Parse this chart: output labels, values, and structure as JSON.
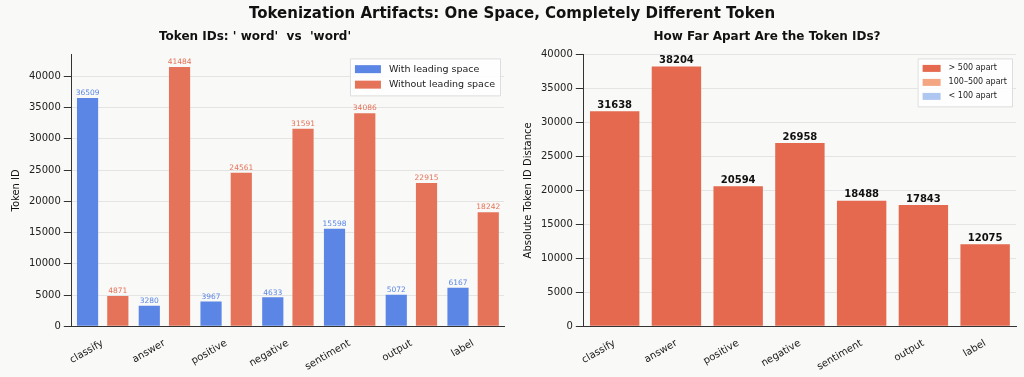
{
  "chart_data": [
    {
      "type": "bar",
      "title": "Token IDs: ' word'  vs  'word'",
      "ylabel": "Token ID",
      "categories": [
        "classify",
        "answer",
        "positive",
        "negative",
        "sentiment",
        "output",
        "label"
      ],
      "series": [
        {
          "name": "With leading space",
          "color": "#5b86e5",
          "values": [
            36509,
            3280,
            3967,
            4633,
            15598,
            5072,
            6167
          ]
        },
        {
          "name": "Without leading space",
          "color": "#e5735a",
          "values": [
            4871,
            41484,
            24561,
            31591,
            34086,
            22915,
            18242
          ]
        }
      ],
      "ylim": [
        0,
        43500
      ],
      "yticks": [
        0,
        5000,
        10000,
        15000,
        20000,
        25000,
        30000,
        35000,
        40000
      ],
      "grid": "y",
      "legend": "top right",
      "data_labels": true,
      "annotations": [
        "Tokenization Artifacts: One Space, Completely Different Token"
      ]
    },
    {
      "type": "bar",
      "title": "How Far Apart Are the Token IDs?",
      "ylabel": "Absolute Token ID Distance",
      "categories": [
        "classify",
        "answer",
        "positive",
        "negative",
        "sentiment",
        "output",
        "label"
      ],
      "series": [
        {
          "name": "> 500 apart",
          "color": "#e4694e",
          "values": [
            31638,
            38204,
            20594,
            26958,
            18488,
            17843,
            12075
          ]
        },
        {
          "name": "100–500 apart",
          "color": "#f4a582",
          "values": [
            null,
            null,
            null,
            null,
            null,
            null,
            null
          ]
        },
        {
          "name": "< 100 apart",
          "color": "#aec7f0",
          "values": [
            null,
            null,
            null,
            null,
            null,
            null,
            null
          ]
        }
      ],
      "stacked": true,
      "ylim": [
        0,
        40000
      ],
      "yticks": [
        0,
        5000,
        10000,
        15000,
        20000,
        25000,
        30000,
        35000,
        40000
      ],
      "grid": "y",
      "legend": "top right",
      "data_labels": true
    }
  ]
}
